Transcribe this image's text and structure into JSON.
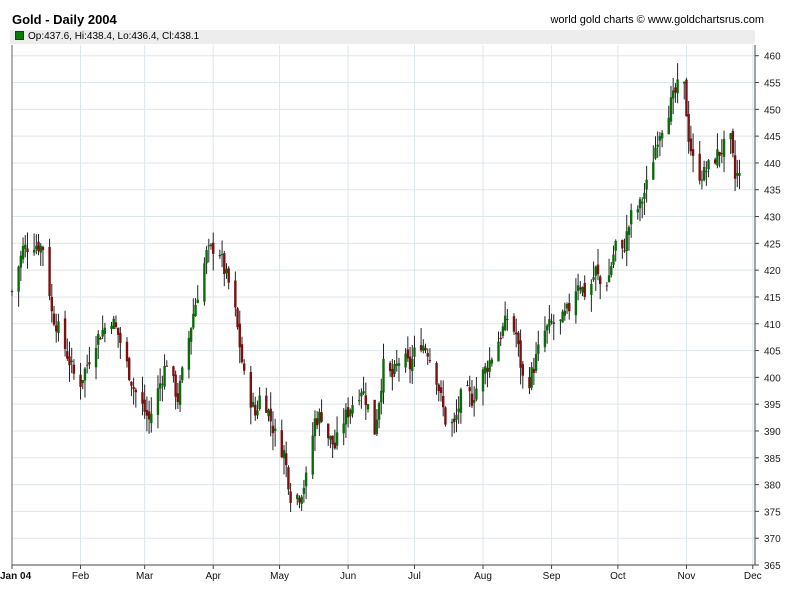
{
  "header": {
    "title": "Gold - Daily 2004",
    "credit": "world gold charts © www.goldchartsrus.com",
    "ohlc_text": "Op:437.6, Hi:438.4, Lo:436.4, Cl:438.1"
  },
  "colors": {
    "up_body": "#0b6b0b",
    "down_body": "#7a1010",
    "wick": "#222222",
    "grid": "#dde6ea",
    "ohlc_swatch": "#0a7a0a"
  },
  "chart_data": {
    "type": "candlestick",
    "title": "Gold - Daily 2004",
    "x_labels": [
      "Jan 04",
      "Feb",
      "Mar",
      "Apr",
      "May",
      "Jun",
      "Jul",
      "Aug",
      "Sep",
      "Oct",
      "Nov",
      "Dec"
    ],
    "y_ticks": [
      365,
      370,
      375,
      380,
      385,
      390,
      395,
      400,
      405,
      410,
      415,
      420,
      425,
      430,
      435,
      440,
      445,
      450,
      455,
      460
    ],
    "ylim": [
      365,
      462
    ],
    "y_axis_side": "right",
    "grid": true,
    "last_bar": {
      "open": 437.6,
      "high": 438.4,
      "low": 436.4,
      "close": 438.1
    },
    "close_path": [
      [
        0,
        416
      ],
      [
        5,
        424
      ],
      [
        10,
        425
      ],
      [
        15,
        424
      ],
      [
        18,
        412
      ],
      [
        22,
        408
      ],
      [
        30,
        398
      ],
      [
        38,
        407
      ],
      [
        45,
        411
      ],
      [
        48,
        408
      ],
      [
        55,
        398
      ],
      [
        62,
        392
      ],
      [
        70,
        403
      ],
      [
        75,
        396
      ],
      [
        82,
        412
      ],
      [
        88,
        423
      ],
      [
        93,
        425
      ],
      [
        96,
        420
      ],
      [
        100,
        415
      ],
      [
        105,
        400
      ],
      [
        110,
        393
      ],
      [
        113,
        398
      ],
      [
        117,
        392
      ],
      [
        120,
        388
      ],
      [
        123,
        386
      ],
      [
        126,
        378
      ],
      [
        130,
        378
      ],
      [
        133,
        381
      ],
      [
        137,
        392
      ],
      [
        140,
        393
      ],
      [
        143,
        389
      ],
      [
        146,
        387
      ],
      [
        150,
        392
      ],
      [
        155,
        396
      ],
      [
        158,
        398
      ],
      [
        160,
        396
      ],
      [
        164,
        390
      ],
      [
        168,
        402
      ],
      [
        172,
        400
      ],
      [
        176,
        404
      ],
      [
        180,
        402
      ],
      [
        184,
        407
      ],
      [
        188,
        405
      ],
      [
        192,
        400
      ],
      [
        196,
        392
      ],
      [
        200,
        391
      ],
      [
        204,
        398
      ],
      [
        208,
        396
      ],
      [
        212,
        400
      ],
      [
        216,
        403
      ],
      [
        220,
        407
      ],
      [
        224,
        411
      ],
      [
        228,
        408
      ],
      [
        232,
        397
      ],
      [
        236,
        402
      ],
      [
        240,
        408
      ],
      [
        244,
        410
      ],
      [
        248,
        410
      ],
      [
        252,
        413
      ],
      [
        256,
        418
      ],
      [
        260,
        415
      ],
      [
        264,
        420
      ],
      [
        267,
        416
      ],
      [
        270,
        419
      ],
      [
        273,
        425
      ],
      [
        276,
        423
      ],
      [
        280,
        430
      ],
      [
        284,
        432
      ],
      [
        288,
        437
      ],
      [
        292,
        445
      ],
      [
        296,
        449
      ],
      [
        299,
        452
      ],
      [
        301,
        454
      ],
      [
        304,
        454
      ],
      [
        306,
        445
      ],
      [
        309,
        438
      ],
      [
        313,
        438
      ],
      [
        318,
        441
      ],
      [
        322,
        443
      ],
      [
        325,
        444
      ],
      [
        327,
        437
      ],
      [
        329,
        438
      ]
    ],
    "total_days": 330,
    "month_start_days": [
      0,
      31,
      60,
      91,
      121,
      152,
      182,
      213,
      244,
      274,
      305,
      335
    ]
  }
}
